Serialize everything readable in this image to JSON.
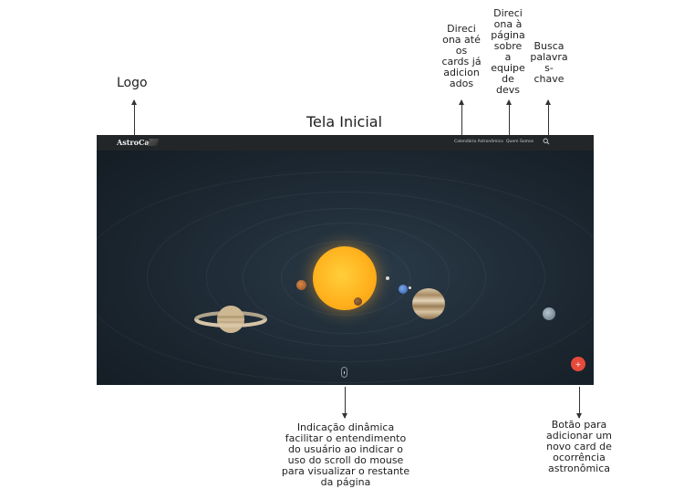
{
  "annotations": {
    "logo": "Logo",
    "calendar": "Direci\nona até\nos\ncards já\nadicion\nados",
    "team": "Direci\nona à\npágina\nsobre\na\nequipe\nde\ndevs",
    "search": "Busca\npalavra\ns-\nchave",
    "scroll": "Indicação dinâmica\nfacilitar o entendimento\ndo usuário ao indicar o\nuso do scroll do mouse\npara visualizar o restante\nda página",
    "add": "Botão para\nadicionar um\nnovo card de\nocorrência\nastronômica"
  },
  "screen_title": "Tela Inicial",
  "navbar": {
    "logo": "AstroCal",
    "links": [
      "Calendário Astronômico",
      "Quem Somos"
    ],
    "search_icon": "search-icon"
  },
  "fab": {
    "label": "+",
    "color": "#e64a3b"
  },
  "colors": {
    "navbar": "#232628",
    "background": "#1c2731",
    "sun": "#ffb21e"
  }
}
